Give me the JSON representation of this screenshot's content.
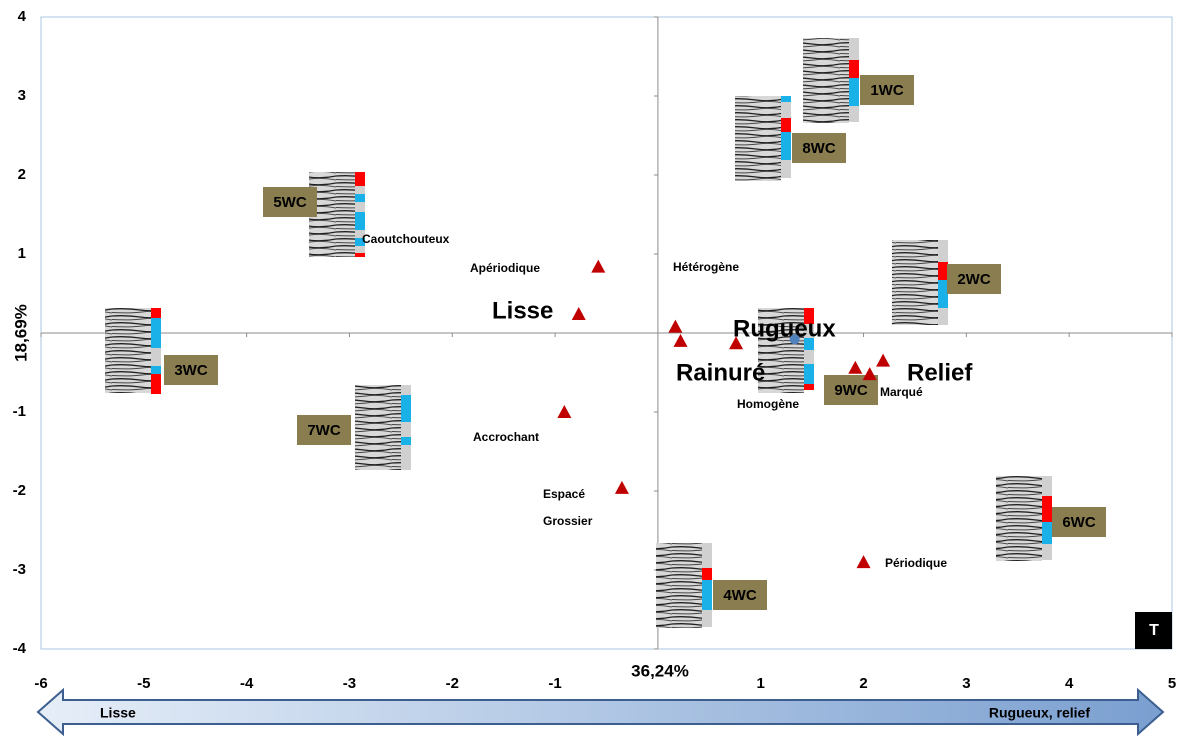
{
  "chart_data": {
    "type": "scatter",
    "xlim": [
      -6,
      5
    ],
    "ylim": [
      -4,
      4
    ],
    "xticks": [
      -6,
      -5,
      -4,
      -3,
      -2,
      -1,
      1,
      2,
      3,
      4,
      5
    ],
    "yticks": [
      4,
      3,
      2,
      1,
      -1,
      -2,
      -3,
      -4
    ],
    "x_label": "36,24%",
    "y_label": "18,69%",
    "series": [
      {
        "color": "#c00000",
        "marker": "triangle",
        "x": [
          -0.58,
          -0.77,
          -0.91,
          -0.35,
          0.17,
          0.22,
          0.76,
          1.92,
          2.06,
          2.19,
          2.0
        ],
        "values": [
          0.84,
          0.24,
          -1.0,
          -1.96,
          0.08,
          -0.1,
          -0.13,
          -0.44,
          -0.52,
          -0.35,
          -2.9
        ]
      },
      {
        "color": "#4f81bd",
        "marker": "circle",
        "x": [
          1.33
        ],
        "values": [
          -0.08
        ]
      }
    ],
    "annotations": [
      "Caoutchouteux",
      "Apériodique",
      "Hétérogène",
      "Lisse",
      "Rugueux",
      "Rainuré",
      "Relief",
      "Homogène",
      "Marqué",
      "Accrochant",
      "Espacé",
      "Grossier",
      "Périodique"
    ],
    "sample_labels": [
      "1WC",
      "8WC",
      "5WC",
      "2WC",
      "3WC",
      "7WC",
      "9WC",
      "6WC",
      "4WC"
    ],
    "arrow_labels": [
      "Lisse",
      "Rugueux, relief"
    ],
    "corner_badge": "T"
  }
}
